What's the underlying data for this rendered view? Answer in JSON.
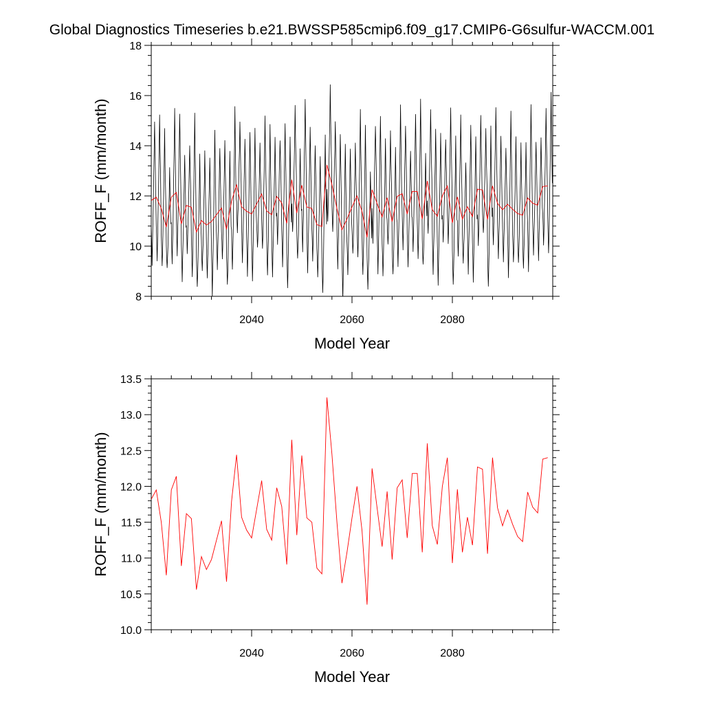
{
  "figure": {
    "title": "Global Diagnostics Timeseries b.e21.BWSSP585cmip6.f09_g17.CMIP6-G6sulfur-WACCM.001"
  },
  "colors": {
    "monthly_line": "#000000",
    "annual_line": "#ff0000",
    "axes": "#000000",
    "background": "#ffffff"
  },
  "chart_data": [
    {
      "type": "line",
      "panel": "top",
      "xlabel": "Model Year",
      "ylabel": "ROFF_F (mm/month)",
      "xlim": [
        2020,
        2100
      ],
      "ylim": [
        8,
        18
      ],
      "xticks": [
        2040,
        2060,
        2080
      ],
      "yticks": [
        8,
        10,
        12,
        14,
        16,
        18
      ],
      "grid": false,
      "series": [
        {
          "color": "#000000",
          "resolution": "monthly",
          "x_start": 2020.0,
          "x_step": 0.0833333,
          "seasonal_cycle_offsets": [
            -0.93,
            -1.62,
            -2.31,
            -1.62,
            -0.93,
            0.0,
            0.93,
            1.85,
            3.01,
            1.85,
            0.93,
            0.0
          ],
          "note_values": "monthly values oscillate around the annual means below with an amplitude of roughly ±2.3 to ±3.4 mm/month; observed range about 8.1 to 16.6"
        },
        {
          "color": "#ff0000",
          "resolution": "annual",
          "x": [
            2020,
            2021,
            2022,
            2023,
            2024,
            2025,
            2026,
            2027,
            2028,
            2029,
            2030,
            2031,
            2032,
            2033,
            2034,
            2035,
            2036,
            2037,
            2038,
            2039,
            2040,
            2041,
            2042,
            2043,
            2044,
            2045,
            2046,
            2047,
            2048,
            2049,
            2050,
            2051,
            2052,
            2053,
            2054,
            2055,
            2056,
            2057,
            2058,
            2059,
            2060,
            2061,
            2062,
            2063,
            2064,
            2065,
            2066,
            2067,
            2068,
            2069,
            2070,
            2071,
            2072,
            2073,
            2074,
            2075,
            2076,
            2077,
            2078,
            2079,
            2080,
            2081,
            2082,
            2083,
            2084,
            2085,
            2086,
            2087,
            2088,
            2089,
            2090,
            2091,
            2092,
            2093,
            2094,
            2095,
            2096,
            2097,
            2098,
            2099
          ],
          "values": [
            11.82,
            11.95,
            11.5,
            10.76,
            11.95,
            12.14,
            10.89,
            11.62,
            11.55,
            10.56,
            11.02,
            10.84,
            10.98,
            11.25,
            11.52,
            10.67,
            11.79,
            12.44,
            11.57,
            11.39,
            11.28,
            11.68,
            12.08,
            11.4,
            11.25,
            11.98,
            11.72,
            10.91,
            12.65,
            11.32,
            12.43,
            11.56,
            11.5,
            10.86,
            10.78,
            13.24,
            12.45,
            11.5,
            10.65,
            11.08,
            11.56,
            12.0,
            11.38,
            10.35,
            12.25,
            11.7,
            11.16,
            11.93,
            10.98,
            11.98,
            12.09,
            11.28,
            12.18,
            12.18,
            11.08,
            12.6,
            11.45,
            11.19,
            12.0,
            12.4,
            10.93,
            11.96,
            11.08,
            11.57,
            11.18,
            12.27,
            12.24,
            11.06,
            12.4,
            11.7,
            11.45,
            11.67,
            11.47,
            11.3,
            11.23,
            11.92,
            11.71,
            11.63,
            12.38,
            12.4
          ]
        }
      ]
    },
    {
      "type": "line",
      "panel": "bottom",
      "xlabel": "Model Year",
      "ylabel": "ROFF_F (mm/month)",
      "xlim": [
        2020,
        2100
      ],
      "ylim": [
        10.0,
        13.5
      ],
      "xticks": [
        2040,
        2060,
        2080
      ],
      "yticks": [
        10.0,
        10.5,
        11.0,
        11.5,
        12.0,
        12.5,
        13.0,
        13.5
      ],
      "grid": false,
      "series": [
        {
          "color": "#ff0000",
          "resolution": "annual",
          "x_from_panel": "top",
          "values_from_panel": "top annual series"
        }
      ]
    }
  ]
}
